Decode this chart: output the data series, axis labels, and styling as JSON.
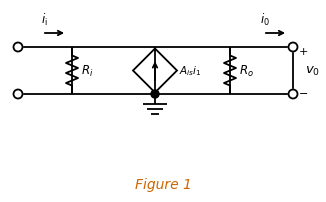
{
  "title": "Figure 1",
  "title_color": "#cc6600",
  "title_fontsize": 10,
  "bg_color": "#ffffff",
  "line_color": "#000000",
  "line_width": 1.3,
  "fig_width": 3.26,
  "fig_height": 2.03,
  "dpi": 100
}
